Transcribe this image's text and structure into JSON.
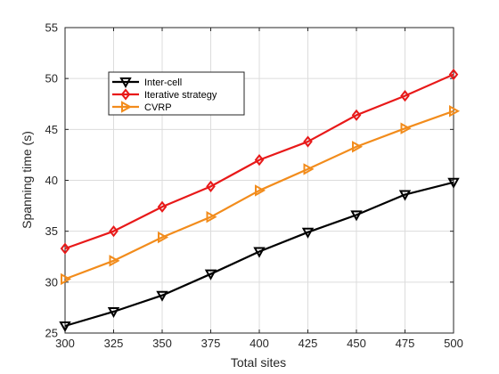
{
  "chart_data": {
    "type": "line",
    "title": "",
    "xlabel": "Total sites",
    "ylabel": "Spanning time (s)",
    "x": [
      300,
      325,
      350,
      375,
      400,
      425,
      450,
      475,
      500
    ],
    "xticks": [
      "300",
      "325",
      "350",
      "375",
      "400",
      "425",
      "450",
      "475",
      "500"
    ],
    "yticks": [
      "25",
      "30",
      "35",
      "40",
      "45",
      "50",
      "55"
    ],
    "xlim": [
      300,
      500
    ],
    "ylim": [
      25,
      55
    ],
    "grid": true,
    "legend_position": "top-left",
    "series": [
      {
        "name": "Inter-cell",
        "color": "#000000",
        "marker": "triangle-down",
        "values": [
          25.7,
          27.1,
          28.7,
          30.8,
          33.0,
          34.9,
          36.6,
          38.6,
          39.8
        ]
      },
      {
        "name": "Iterative strategy",
        "color": "#e81919",
        "marker": "diamond",
        "values": [
          33.3,
          35.0,
          37.4,
          39.4,
          42.0,
          43.8,
          46.4,
          48.3,
          50.4
        ]
      },
      {
        "name": "CVRP",
        "color": "#f28c1c",
        "marker": "triangle-right",
        "values": [
          30.3,
          32.1,
          34.4,
          36.4,
          39.0,
          41.1,
          43.3,
          45.1,
          46.8
        ]
      }
    ]
  }
}
